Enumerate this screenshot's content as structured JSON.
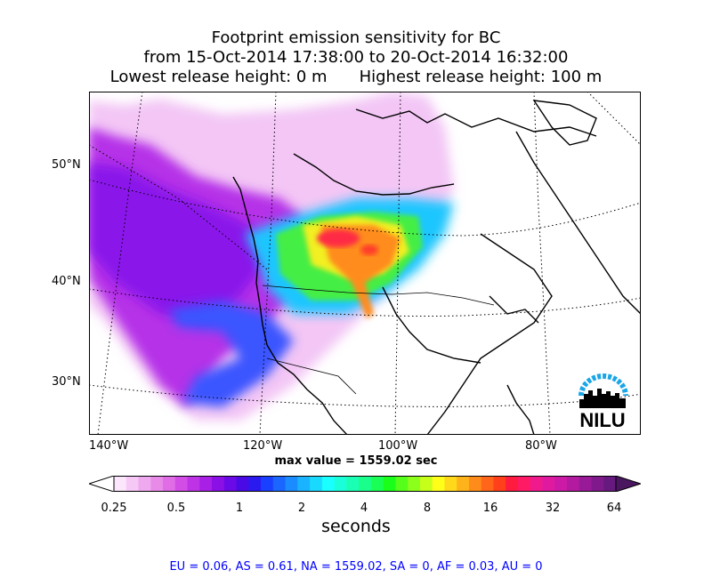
{
  "title": {
    "line1": "Footprint emission sensitivity for BC",
    "line2": "from 15-Oct-2014 17:38:00 to 20-Oct-2014 16:32:00",
    "lowest": "Lowest release height: 0 m",
    "highest": "Highest release height: 100 m"
  },
  "map": {
    "lat_labels": [
      "50°N",
      "40°N",
      "30°N"
    ],
    "lon_labels": [
      "140°W",
      "120°W",
      "100°W",
      "80°W"
    ],
    "max_value": "max value = 1559.02 sec"
  },
  "logo": {
    "text": "NILU",
    "arc_color": "#1aa6e6"
  },
  "colorbar": {
    "ticks": [
      "0.25",
      "0.5",
      "1",
      "2",
      "4",
      "8",
      "16",
      "32",
      "64"
    ],
    "label": "seconds",
    "colors": [
      "#fbe6fb",
      "#f5c8f5",
      "#efaaef",
      "#e88be8",
      "#e06ce6",
      "#d24de6",
      "#bf33e6",
      "#a81fe6",
      "#8a10e6",
      "#6a0ae6",
      "#4a0ae6",
      "#2a1af0",
      "#1a40ff",
      "#1a66ff",
      "#1a8cff",
      "#1ab3ff",
      "#1ad9ff",
      "#1affff",
      "#1affd9",
      "#1affb3",
      "#1aff8c",
      "#1aff55",
      "#1aff1a",
      "#55ff1a",
      "#8cff1a",
      "#c6ff1a",
      "#ffff1a",
      "#ffd91a",
      "#ffb31a",
      "#ff8c1a",
      "#ff661a",
      "#ff401a",
      "#ff1a40",
      "#ff1a66",
      "#f01a8c",
      "#e01aa0",
      "#cc1aa6",
      "#b31aa0",
      "#991a99",
      "#801a8c",
      "#661a80"
    ]
  },
  "footer": "EU = 0.06,  AS = 0.61,  NA = 1559.02,  SA = 0,  AF = 0.03,  AU = 0"
}
